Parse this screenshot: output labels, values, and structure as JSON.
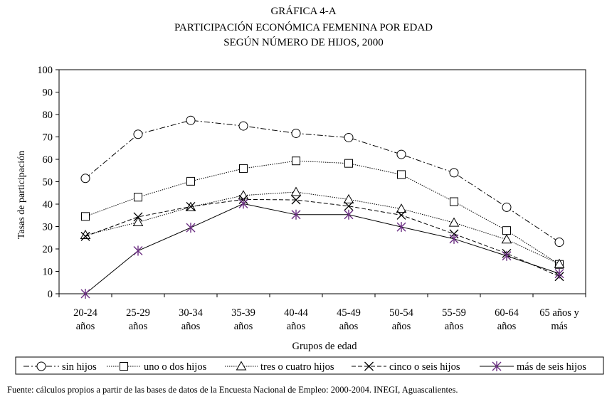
{
  "chart_data": {
    "type": "line",
    "title": [
      "GRÁFICA 4-A",
      "PARTICIPACIÓN ECONÓMICA FEMENINA POR EDAD",
      "SEGÚN NÚMERO DE HIJOS, 2000"
    ],
    "xlabel": "Grupos de edad",
    "ylabel": "Tasas de participación",
    "ylim": [
      0,
      100
    ],
    "yticks": [
      0,
      10,
      20,
      30,
      40,
      50,
      60,
      70,
      80,
      90,
      100
    ],
    "categories": [
      [
        "20-24",
        "años"
      ],
      [
        "25-29",
        "años"
      ],
      [
        "30-34",
        "años"
      ],
      [
        "35-39",
        "años"
      ],
      [
        "40-44",
        "años"
      ],
      [
        "45-49",
        "años"
      ],
      [
        "50-54",
        "años"
      ],
      [
        "55-59",
        "años"
      ],
      [
        "60-64",
        "años"
      ],
      [
        "65 años y",
        "más"
      ]
    ],
    "legend_position": "bottom",
    "series": [
      {
        "name": "sin hijos",
        "marker": "circle",
        "dash": "8 3 2 3",
        "values": [
          51.5,
          71.2,
          77.4,
          74.9,
          71.6,
          69.7,
          62.2,
          54.0,
          38.6,
          23.0
        ]
      },
      {
        "name": "uno o dos hijos",
        "marker": "square",
        "dash": "1.5 1.5",
        "values": [
          34.5,
          43.1,
          50.2,
          55.9,
          59.3,
          58.2,
          53.2,
          41.1,
          28.2,
          13.1
        ]
      },
      {
        "name": "tres o cuatro hijos",
        "marker": "triangle",
        "dash": "1.5 1.5",
        "values": [
          26.2,
          31.9,
          38.7,
          43.9,
          45.4,
          42.1,
          37.9,
          31.7,
          24.2,
          13.3
        ]
      },
      {
        "name": "cinco o seis hijos",
        "marker": "x",
        "dash": "6 3",
        "values": [
          25.6,
          34.3,
          38.9,
          42.1,
          41.9,
          39.1,
          35.1,
          26.7,
          18.0,
          7.7
        ]
      },
      {
        "name": "más de seis hijos",
        "marker": "star",
        "dash": "",
        "values": [
          0.0,
          19.2,
          29.5,
          40.2,
          35.3,
          35.3,
          29.8,
          24.5,
          16.9,
          9.0
        ]
      }
    ]
  },
  "source": "Fuente: cálculos propios a partir de las bases de datos de la Encuesta Nacional de Empleo: 2000-2004. INEGI, Aguascalientes."
}
